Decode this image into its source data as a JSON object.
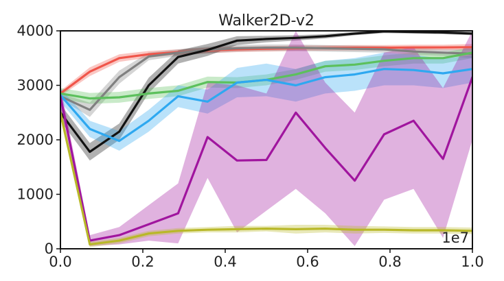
{
  "chart_data": {
    "type": "line",
    "title": "Walker2D-v2",
    "xlabel": "",
    "ylabel": "",
    "x_offset_label": "1e7",
    "xlim": [
      0.0,
      1.0
    ],
    "ylim": [
      0,
      4000
    ],
    "x_ticks": [
      "0.0",
      "0.2",
      "0.4",
      "0.6",
      "0.8",
      "1.0"
    ],
    "y_ticks": [
      "0",
      "1000",
      "2000",
      "3000",
      "4000"
    ],
    "x_tick_values": [
      0.0,
      0.2,
      0.4,
      0.6,
      0.8,
      1.0
    ],
    "y_tick_values": [
      0,
      1000,
      2000,
      3000,
      4000
    ],
    "grid": false,
    "x": [
      0.0,
      0.0714,
      0.1429,
      0.2143,
      0.2857,
      0.3571,
      0.4286,
      0.5,
      0.5714,
      0.6429,
      0.7143,
      0.7857,
      0.8571,
      0.9286,
      1.0
    ],
    "series": [
      {
        "color": "#f0554a",
        "values": [
          2850,
          3250,
          3500,
          3570,
          3610,
          3640,
          3660,
          3670,
          3680,
          3685,
          3690,
          3690,
          3695,
          3695,
          3700
        ],
        "lower": [
          2800,
          3170,
          3430,
          3510,
          3560,
          3590,
          3610,
          3620,
          3630,
          3635,
          3640,
          3640,
          3645,
          3645,
          3650
        ],
        "upper": [
          2900,
          3330,
          3570,
          3630,
          3660,
          3690,
          3710,
          3720,
          3730,
          3735,
          3740,
          3740,
          3745,
          3745,
          3760
        ]
      },
      {
        "color": "#808080",
        "values": [
          2800,
          2550,
          3150,
          3530,
          3600,
          3650,
          3680,
          3690,
          3690,
          3680,
          3670,
          3660,
          3620,
          3600,
          3580
        ],
        "lower": [
          2750,
          2420,
          3030,
          3460,
          3540,
          3590,
          3620,
          3630,
          3630,
          3620,
          3610,
          3600,
          3560,
          3540,
          3500
        ],
        "upper": [
          2850,
          2680,
          3270,
          3600,
          3660,
          3710,
          3740,
          3750,
          3750,
          3740,
          3730,
          3720,
          3680,
          3660,
          3660
        ]
      },
      {
        "color": "#111111",
        "values": [
          2500,
          1780,
          2150,
          3000,
          3520,
          3650,
          3820,
          3850,
          3870,
          3900,
          3950,
          3990,
          3980,
          3970,
          3950
        ],
        "lower": [
          2350,
          1620,
          2000,
          2860,
          3400,
          3540,
          3740,
          3790,
          3820,
          3860,
          3920,
          3960,
          3950,
          3940,
          3920
        ],
        "upper": [
          2650,
          1940,
          2300,
          3140,
          3640,
          3760,
          3900,
          3910,
          3920,
          3940,
          3980,
          4020,
          4010,
          4000,
          3980
        ]
      },
      {
        "color": "#5cc05c",
        "values": [
          2850,
          2760,
          2780,
          2850,
          2900,
          3060,
          3050,
          3100,
          3200,
          3350,
          3380,
          3450,
          3500,
          3500,
          3600
        ],
        "lower": [
          2750,
          2660,
          2680,
          2750,
          2800,
          2960,
          2950,
          3000,
          3100,
          3250,
          3280,
          3350,
          3400,
          3400,
          3500
        ],
        "upper": [
          2950,
          2860,
          2880,
          2950,
          3000,
          3160,
          3150,
          3200,
          3300,
          3450,
          3480,
          3550,
          3600,
          3600,
          3700
        ]
      },
      {
        "color": "#2ea8f0",
        "values": [
          2820,
          2200,
          1980,
          2350,
          2800,
          2700,
          3050,
          3100,
          3000,
          3150,
          3200,
          3300,
          3280,
          3220,
          3300
        ],
        "lower": [
          2700,
          2050,
          1800,
          2150,
          2600,
          2480,
          2780,
          2800,
          2700,
          2850,
          2900,
          3000,
          3000,
          2950,
          3050
        ],
        "upper": [
          2940,
          2350,
          2160,
          2550,
          3000,
          2920,
          3320,
          3400,
          3300,
          3450,
          3500,
          3600,
          3560,
          3490,
          3550
        ]
      },
      {
        "color": "#a0159e",
        "values": [
          2800,
          150,
          250,
          450,
          650,
          2050,
          1620,
          1630,
          2500,
          1850,
          1250,
          2100,
          2350,
          1650,
          3150
        ],
        "lower": [
          2600,
          50,
          80,
          150,
          100,
          1300,
          300,
          700,
          1100,
          650,
          50,
          900,
          1100,
          200,
          2000
        ],
        "upper": [
          3000,
          250,
          400,
          800,
          1200,
          3050,
          3000,
          2850,
          4000,
          3050,
          2500,
          3600,
          3700,
          2950,
          4000
        ]
      },
      {
        "color": "#b8b828",
        "values": [
          2500,
          80,
          150,
          280,
          330,
          350,
          360,
          370,
          360,
          370,
          350,
          350,
          340,
          340,
          330
        ],
        "lower": [
          2380,
          30,
          100,
          230,
          280,
          300,
          300,
          320,
          280,
          300,
          280,
          290,
          280,
          280,
          270
        ],
        "upper": [
          2620,
          130,
          200,
          330,
          380,
          400,
          420,
          420,
          440,
          440,
          420,
          410,
          400,
          400,
          390
        ]
      }
    ]
  }
}
